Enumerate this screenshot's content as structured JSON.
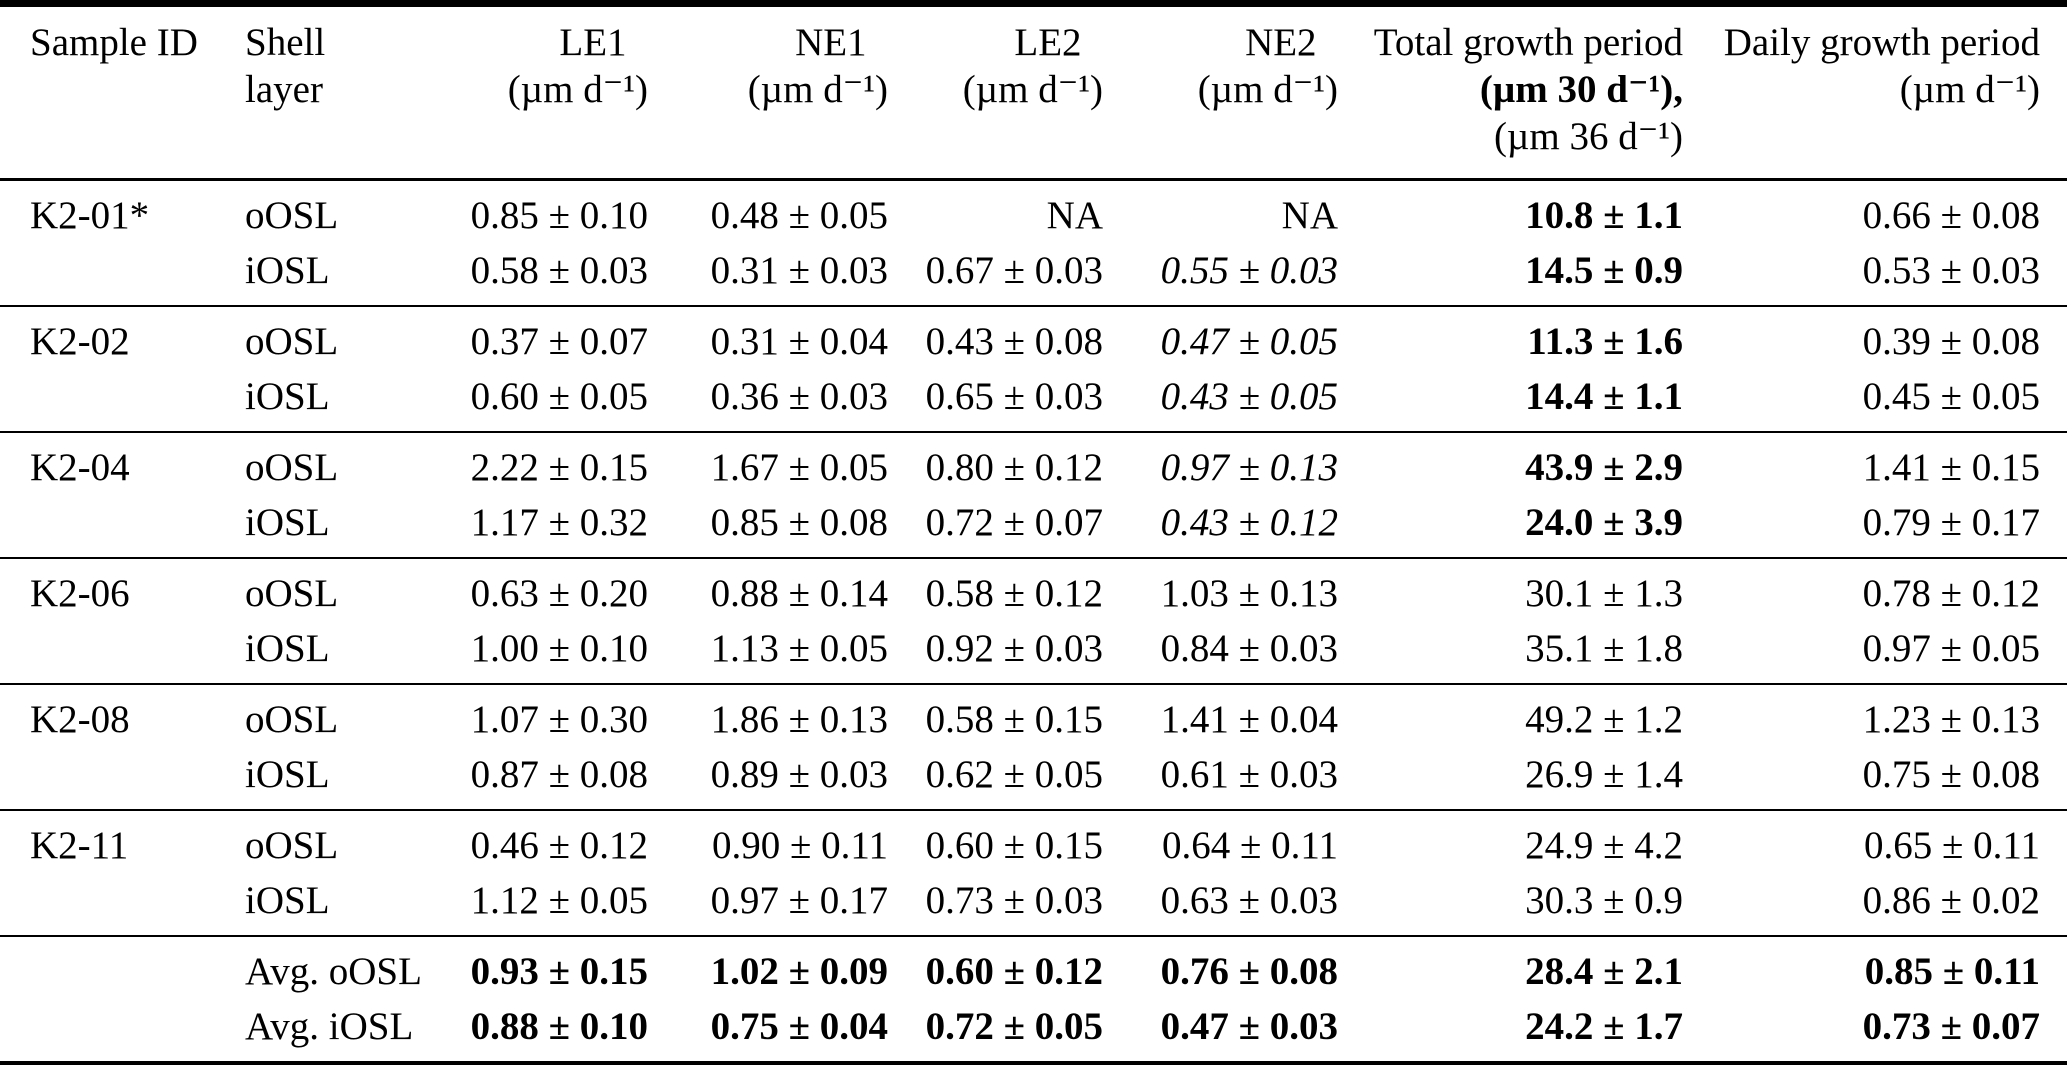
{
  "table": {
    "header": {
      "col1": {
        "name": "Sample ID"
      },
      "col2": {
        "line1": "Shell",
        "line2": "layer"
      },
      "col3": {
        "name": "LE1",
        "unit": "(µm d⁻¹)"
      },
      "col4": {
        "name": "NE1",
        "unit": "(µm d⁻¹)"
      },
      "col5": {
        "name": "LE2",
        "unit": "(µm d⁻¹)"
      },
      "col6": {
        "name": "NE2",
        "unit": "(µm d⁻¹)"
      },
      "col7": {
        "name": "Total growth period",
        "unit_primary": "(µm 30 d⁻¹),",
        "unit_secondary": "(µm 36 d⁻¹)"
      },
      "col8": {
        "name": "Daily growth period",
        "unit": "(µm d⁻¹)"
      }
    },
    "rows": [
      {
        "sample_id": "K2-01*",
        "layer": "oOSL",
        "group_start": true,
        "group_end": false,
        "values": [
          {
            "text": "0.85 ± 0.10",
            "style": ""
          },
          {
            "text": "0.48 ± 0.05",
            "style": ""
          },
          {
            "text": "NA",
            "style": ""
          },
          {
            "text": "NA",
            "style": ""
          },
          {
            "text": "10.8 ± 1.1",
            "style": "bold"
          },
          {
            "text": "0.66 ± 0.08",
            "style": ""
          }
        ]
      },
      {
        "sample_id": "",
        "layer": "iOSL",
        "group_start": false,
        "group_end": true,
        "values": [
          {
            "text": "0.58 ± 0.03",
            "style": ""
          },
          {
            "text": "0.31 ± 0.03",
            "style": ""
          },
          {
            "text": "0.67 ± 0.03",
            "style": ""
          },
          {
            "text": "0.55 ± 0.03",
            "style": "italic"
          },
          {
            "text": "14.5 ± 0.9",
            "style": "bold"
          },
          {
            "text": "0.53 ± 0.03",
            "style": ""
          }
        ]
      },
      {
        "sample_id": "K2-02",
        "layer": "oOSL",
        "group_start": true,
        "group_end": false,
        "values": [
          {
            "text": "0.37 ± 0.07",
            "style": ""
          },
          {
            "text": "0.31 ± 0.04",
            "style": ""
          },
          {
            "text": "0.43 ± 0.08",
            "style": ""
          },
          {
            "text": "0.47 ± 0.05",
            "style": "italic"
          },
          {
            "text": "11.3 ± 1.6",
            "style": "bold"
          },
          {
            "text": "0.39 ± 0.08",
            "style": ""
          }
        ]
      },
      {
        "sample_id": "",
        "layer": "iOSL",
        "group_start": false,
        "group_end": true,
        "values": [
          {
            "text": "0.60 ± 0.05",
            "style": ""
          },
          {
            "text": "0.36 ± 0.03",
            "style": ""
          },
          {
            "text": "0.65 ± 0.03",
            "style": ""
          },
          {
            "text": "0.43 ± 0.05",
            "style": "italic"
          },
          {
            "text": "14.4 ± 1.1",
            "style": "bold"
          },
          {
            "text": "0.45 ± 0.05",
            "style": ""
          }
        ]
      },
      {
        "sample_id": "K2-04",
        "layer": "oOSL",
        "group_start": true,
        "group_end": false,
        "values": [
          {
            "text": "2.22 ± 0.15",
            "style": ""
          },
          {
            "text": "1.67 ± 0.05",
            "style": ""
          },
          {
            "text": "0.80 ± 0.12",
            "style": ""
          },
          {
            "text": "0.97 ± 0.13",
            "style": "italic"
          },
          {
            "text": "43.9 ± 2.9",
            "style": "bold"
          },
          {
            "text": "1.41 ± 0.15",
            "style": ""
          }
        ]
      },
      {
        "sample_id": "",
        "layer": "iOSL",
        "group_start": false,
        "group_end": true,
        "values": [
          {
            "text": "1.17 ± 0.32",
            "style": ""
          },
          {
            "text": "0.85 ± 0.08",
            "style": ""
          },
          {
            "text": "0.72 ± 0.07",
            "style": ""
          },
          {
            "text": "0.43 ± 0.12",
            "style": "italic"
          },
          {
            "text": "24.0 ± 3.9",
            "style": "bold"
          },
          {
            "text": "0.79 ± 0.17",
            "style": ""
          }
        ]
      },
      {
        "sample_id": "K2-06",
        "layer": "oOSL",
        "group_start": true,
        "group_end": false,
        "values": [
          {
            "text": "0.63 ± 0.20",
            "style": ""
          },
          {
            "text": "0.88 ± 0.14",
            "style": ""
          },
          {
            "text": "0.58 ± 0.12",
            "style": ""
          },
          {
            "text": "1.03 ± 0.13",
            "style": ""
          },
          {
            "text": "30.1 ± 1.3",
            "style": ""
          },
          {
            "text": "0.78 ± 0.12",
            "style": ""
          }
        ]
      },
      {
        "sample_id": "",
        "layer": "iOSL",
        "group_start": false,
        "group_end": true,
        "values": [
          {
            "text": "1.00 ± 0.10",
            "style": ""
          },
          {
            "text": "1.13 ± 0.05",
            "style": ""
          },
          {
            "text": "0.92 ± 0.03",
            "style": ""
          },
          {
            "text": "0.84 ± 0.03",
            "style": ""
          },
          {
            "text": "35.1 ± 1.8",
            "style": ""
          },
          {
            "text": "0.97 ± 0.05",
            "style": ""
          }
        ]
      },
      {
        "sample_id": "K2-08",
        "layer": "oOSL",
        "group_start": true,
        "group_end": false,
        "values": [
          {
            "text": "1.07 ± 0.30",
            "style": ""
          },
          {
            "text": "1.86 ± 0.13",
            "style": ""
          },
          {
            "text": "0.58 ± 0.15",
            "style": ""
          },
          {
            "text": "1.41 ± 0.04",
            "style": ""
          },
          {
            "text": "49.2 ± 1.2",
            "style": ""
          },
          {
            "text": "1.23 ± 0.13",
            "style": ""
          }
        ]
      },
      {
        "sample_id": "",
        "layer": "iOSL",
        "group_start": false,
        "group_end": true,
        "values": [
          {
            "text": "0.87 ± 0.08",
            "style": ""
          },
          {
            "text": "0.89 ± 0.03",
            "style": ""
          },
          {
            "text": "0.62 ± 0.05",
            "style": ""
          },
          {
            "text": "0.61 ± 0.03",
            "style": ""
          },
          {
            "text": "26.9 ± 1.4",
            "style": ""
          },
          {
            "text": "0.75 ± 0.08",
            "style": ""
          }
        ]
      },
      {
        "sample_id": "K2-11",
        "layer": "oOSL",
        "group_start": true,
        "group_end": false,
        "values": [
          {
            "text": "0.46 ± 0.12",
            "style": ""
          },
          {
            "text": "0.90 ± 0.11",
            "style": ""
          },
          {
            "text": "0.60 ± 0.15",
            "style": ""
          },
          {
            "text": "0.64 ± 0.11",
            "style": ""
          },
          {
            "text": "24.9 ± 4.2",
            "style": ""
          },
          {
            "text": "0.65 ± 0.11",
            "style": ""
          }
        ]
      },
      {
        "sample_id": "",
        "layer": "iOSL",
        "group_start": false,
        "group_end": true,
        "values": [
          {
            "text": "1.12 ± 0.05",
            "style": ""
          },
          {
            "text": "0.97 ± 0.17",
            "style": ""
          },
          {
            "text": "0.73 ± 0.03",
            "style": ""
          },
          {
            "text": "0.63 ± 0.03",
            "style": ""
          },
          {
            "text": "30.3 ± 0.9",
            "style": ""
          },
          {
            "text": "0.86 ± 0.02",
            "style": ""
          }
        ]
      },
      {
        "sample_id": "",
        "layer": "Avg. oOSL",
        "group_start": true,
        "group_end": false,
        "values": [
          {
            "text": "0.93 ± 0.15",
            "style": "bold"
          },
          {
            "text": "1.02 ± 0.09",
            "style": "bold"
          },
          {
            "text": "0.60 ± 0.12",
            "style": "bold"
          },
          {
            "text": "0.76 ± 0.08",
            "style": "bold"
          },
          {
            "text": "28.4 ± 2.1",
            "style": "bold"
          },
          {
            "text": "0.85 ± 0.11",
            "style": "bold"
          }
        ]
      },
      {
        "sample_id": "",
        "layer": "Avg. iOSL",
        "group_start": false,
        "group_end": true,
        "values": [
          {
            "text": "0.88 ± 0.10",
            "style": "bold"
          },
          {
            "text": "0.75 ± 0.04",
            "style": "bold"
          },
          {
            "text": "0.72 ± 0.05",
            "style": "bold"
          },
          {
            "text": "0.47 ± 0.03",
            "style": "bold"
          },
          {
            "text": "24.2 ± 1.7",
            "style": "bold"
          },
          {
            "text": "0.73 ± 0.07",
            "style": "bold"
          }
        ]
      }
    ]
  }
}
